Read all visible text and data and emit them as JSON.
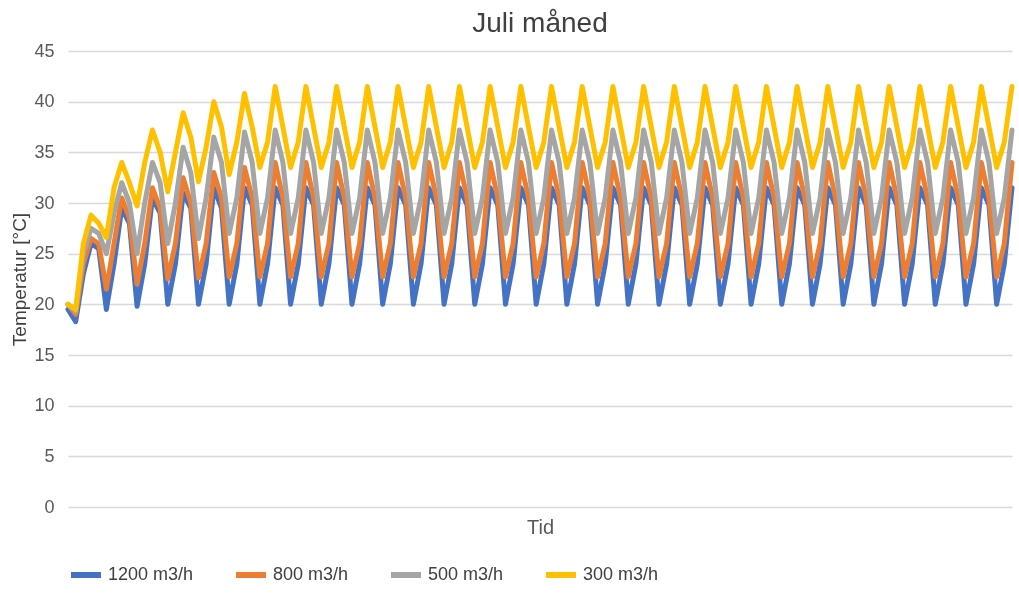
{
  "chart_data": {
    "type": "line",
    "title": "Juli måned",
    "xlabel": "Tid",
    "ylabel": "Temperatur [°C]",
    "categories": [
      null,
      null,
      null,
      null,
      null,
      null,
      null,
      null,
      null,
      null,
      null,
      null,
      null,
      null,
      null,
      null,
      null,
      null,
      null,
      null,
      null,
      null,
      null,
      null,
      null,
      null,
      null,
      null,
      null,
      null,
      null,
      null,
      null,
      null,
      null,
      null,
      null,
      null,
      null,
      null,
      null,
      null,
      null,
      null,
      null,
      null,
      null,
      null,
      null,
      null,
      null,
      null,
      null,
      null,
      null,
      null,
      null,
      null,
      null,
      null,
      null,
      null,
      null,
      null,
      null,
      null,
      null,
      null,
      null,
      null,
      null,
      null,
      null,
      null,
      null,
      null,
      null,
      null,
      null,
      null,
      null,
      null,
      null,
      null,
      null,
      null,
      null,
      null,
      null,
      null,
      null,
      null,
      null,
      null,
      null,
      null,
      null,
      null,
      null,
      null,
      null,
      null,
      null,
      null,
      null,
      null,
      null,
      null,
      null,
      null,
      null,
      null,
      null,
      null,
      null,
      null,
      null,
      null,
      null,
      null,
      null,
      null,
      null,
      null
    ],
    "series": [
      {
        "name": "1200 m3/h",
        "color": "#4472c4",
        "values": [
          19.5,
          18.3,
          23,
          26,
          25.5,
          19.5,
          24,
          29.5,
          28,
          19.8,
          24,
          30.5,
          29,
          20,
          24,
          31,
          29.5,
          20,
          24,
          31.5,
          29.5,
          20,
          24,
          31.5,
          29.8,
          20,
          24,
          31.5,
          29.8,
          20,
          24,
          31.5,
          29.8,
          20,
          24,
          31.5,
          29.8,
          20,
          24,
          31.5,
          29.8,
          20,
          24,
          31.5,
          29.8,
          20,
          24,
          31.5,
          29.8,
          20,
          24,
          31.5,
          29.8,
          20,
          24,
          31.5,
          29.8,
          20,
          24,
          31.5,
          29.8,
          20,
          24,
          31.5,
          29.8,
          20,
          24,
          31.5,
          29.8,
          20,
          24,
          31.5,
          29.8,
          20,
          24,
          31.5,
          29.8,
          20,
          24,
          31.5,
          29.8,
          20,
          24,
          31.5,
          29.8,
          20,
          24,
          31.5,
          29.8,
          20,
          24,
          31.5,
          29.8,
          20,
          24,
          31.5,
          29.8,
          20,
          24,
          31.5,
          29.8,
          20,
          24,
          31.5,
          29.8,
          20,
          24,
          31.5,
          29.8,
          20,
          24,
          31.5,
          29.8,
          20,
          24,
          31.5,
          29.8,
          20,
          24,
          31.5,
          29.8,
          20,
          24,
          31.5
        ]
      },
      {
        "name": "800 m3/h",
        "color": "#ed7d31",
        "values": [
          20,
          19,
          24,
          26.5,
          26,
          21.5,
          26,
          30.5,
          28.5,
          22,
          26,
          31.5,
          29.5,
          22.5,
          26,
          32.5,
          30,
          22.6,
          26,
          33,
          30.5,
          22.7,
          26,
          33.5,
          30.5,
          22.7,
          26,
          34,
          30.5,
          22.7,
          26,
          34,
          30.5,
          22.7,
          26,
          34,
          30.5,
          22.7,
          26,
          34,
          30.5,
          22.7,
          26,
          34,
          30.5,
          22.7,
          26,
          34,
          30.5,
          22.7,
          26,
          34,
          30.5,
          22.7,
          26,
          34,
          30.5,
          22.7,
          26,
          34,
          30.5,
          22.7,
          26,
          34,
          30.5,
          22.7,
          26,
          34,
          30.5,
          22.7,
          26,
          34,
          30.5,
          22.7,
          26,
          34,
          30.5,
          22.7,
          26,
          34,
          30.5,
          22.7,
          26,
          34,
          30.5,
          22.7,
          26,
          34,
          30.5,
          22.7,
          26,
          34,
          30.5,
          22.7,
          26,
          34,
          30.5,
          22.7,
          26,
          34,
          30.5,
          22.7,
          26,
          34,
          30.5,
          22.7,
          26,
          34,
          30.5,
          22.7,
          26,
          34,
          30.5,
          22.7,
          26,
          34,
          30.5,
          22.7,
          26,
          34,
          30.5,
          22.7,
          26,
          34
        ]
      },
      {
        "name": "500 m3/h",
        "color": "#a5a5a5",
        "values": [
          20,
          19.3,
          25,
          27.5,
          27,
          25,
          29,
          32,
          30,
          25,
          30,
          34,
          32,
          26,
          30,
          35.5,
          33,
          26.5,
          30.5,
          36.5,
          34,
          27,
          30.5,
          37,
          34,
          27,
          30.5,
          37.2,
          34,
          27,
          30.5,
          37.2,
          34,
          27,
          30.5,
          37.2,
          34,
          27,
          30.5,
          37.2,
          34,
          27,
          30.5,
          37.2,
          34,
          27,
          30.5,
          37.2,
          34,
          27,
          30.5,
          37.2,
          34,
          27,
          30.5,
          37.2,
          34,
          27,
          30.5,
          37.2,
          34,
          27,
          30.5,
          37.2,
          34,
          27,
          30.5,
          37.2,
          34,
          27,
          30.5,
          37.2,
          34,
          27,
          30.5,
          37.2,
          34,
          27,
          30.5,
          37.2,
          34,
          27,
          30.5,
          37.2,
          34,
          27,
          30.5,
          37.2,
          34,
          27,
          30.5,
          37.2,
          34,
          27,
          30.5,
          37.2,
          34,
          27,
          30.5,
          37.2,
          34,
          27,
          30.5,
          37.2,
          34,
          27,
          30.5,
          37.2,
          34,
          27,
          30.5,
          37.2,
          34,
          27,
          30.5,
          37.2,
          34,
          27,
          30.5,
          37.2,
          34,
          27,
          30.5,
          37.2
        ]
      },
      {
        "name": "300 m3/h",
        "color": "#ffc000",
        "values": [
          20,
          19.5,
          26,
          28.8,
          28,
          26.6,
          31.5,
          34,
          32,
          29.7,
          34,
          37.2,
          35,
          31.1,
          35,
          38.9,
          36.5,
          32.1,
          35.5,
          40,
          37.5,
          32.8,
          36,
          40.8,
          37.5,
          33.5,
          36,
          41.5,
          37.5,
          33.5,
          36,
          41.5,
          37.5,
          33.5,
          36,
          41.5,
          37.5,
          33.5,
          36,
          41.5,
          37.5,
          33.5,
          36,
          41.5,
          37.5,
          33.5,
          36,
          41.5,
          37.5,
          33.5,
          36,
          41.5,
          37.5,
          33.5,
          36,
          41.5,
          37.5,
          33.5,
          36,
          41.5,
          37.5,
          33.5,
          36,
          41.5,
          37.5,
          33.5,
          36,
          41.5,
          37.5,
          33.5,
          36,
          41.5,
          37.5,
          33.5,
          36,
          41.5,
          37.5,
          33.5,
          36,
          41.5,
          37.5,
          33.5,
          36,
          41.5,
          37.5,
          33.5,
          36,
          41.5,
          37.5,
          33.5,
          36,
          41.5,
          37.5,
          33.5,
          36,
          41.5,
          37.5,
          33.5,
          36,
          41.5,
          37.5,
          33.5,
          36,
          41.5,
          37.5,
          33.5,
          36,
          41.5,
          37.5,
          33.5,
          36,
          41.5,
          37.5,
          33.5,
          36,
          41.5,
          37.5,
          33.5,
          36,
          41.5,
          37.5,
          33.5,
          36,
          41.5
        ]
      }
    ],
    "ylim": [
      0,
      45
    ],
    "yticks": [
      0,
      5,
      10,
      15,
      20,
      25,
      30,
      35,
      40,
      45
    ],
    "grid": "y",
    "legend": "bottom",
    "tick_labels": "y",
    "line_style": "solid"
  }
}
